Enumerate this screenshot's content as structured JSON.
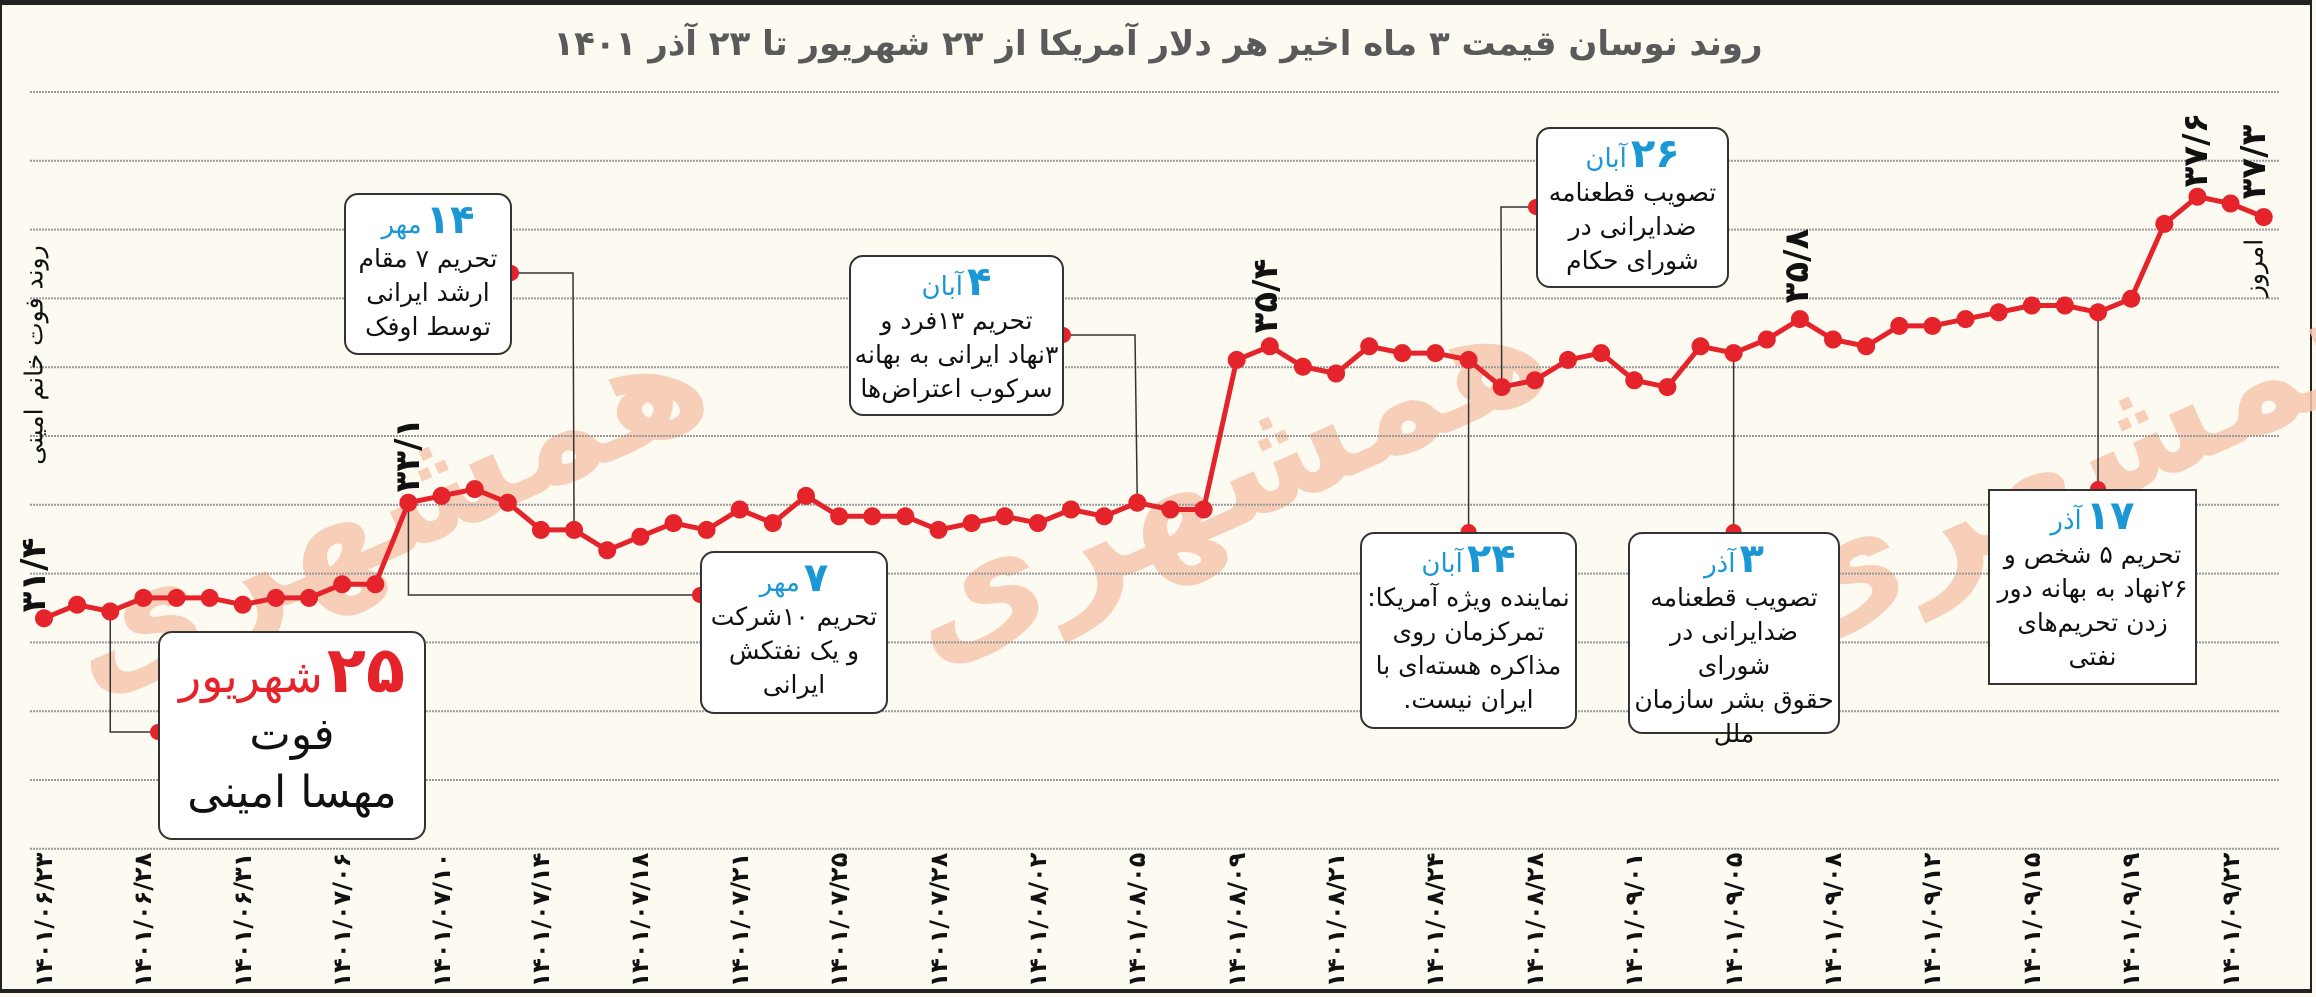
{
  "title": "روند نوسان قیمت ۳ ماه اخیر هر دلار آمریکا از ۲۳ شهریور تا ۲۳ آذر ۱۴۰۱",
  "side_label": "روند فوت خانم امینی",
  "watermark": "همشهری",
  "today_label": "امروز",
  "colors": {
    "line": "#e4232a",
    "accent_blue": "#1b97d5",
    "background": "#fdfaf2",
    "watermark": "#f7c8ae"
  },
  "value_labels": {
    "first": "۳۱/۴",
    "mehr": "۳۳/۱",
    "aban": "۳۵/۴",
    "azar": "۳۵/۸",
    "peak": "۳۷/۶",
    "today": "۳۷/۳"
  },
  "annotations": [
    {
      "day": "۲۵",
      "month": "شهریور",
      "lines": [
        "فوت",
        "مهسا امینی"
      ]
    },
    {
      "day": "۱۴",
      "month": "مهر",
      "lines": [
        "تحریم ۷ مقام",
        "ارشد ایرانی",
        "توسط اوفک"
      ]
    },
    {
      "day": "۷",
      "month": "مهر",
      "lines": [
        "تحریم ۱۰شرکت",
        "و یک نفتکش",
        "ایرانی"
      ]
    },
    {
      "day": "۴",
      "month": "آبان",
      "lines": [
        "تحریم ۱۳فرد و",
        "۳نهاد ایرانی به بهانه",
        "سرکوب اعتراض‌ها"
      ]
    },
    {
      "day": "۲۴",
      "month": "آبان",
      "lines": [
        "نماینده ویژه آمریکا:",
        "تمرکزمان روی",
        "مذاکره هسته‌ای با",
        "ایران نیست."
      ]
    },
    {
      "day": "۲۶",
      "month": "آبان",
      "lines": [
        "تصویب قطعنامه",
        "ضدایرانی در",
        "شورای حکام"
      ]
    },
    {
      "day": "۳",
      "month": "آذر",
      "lines": [
        "تصویب قطعنامه",
        "ضدایرانی در شورای",
        "حقوق بشر سازمان",
        "ملل"
      ]
    },
    {
      "day": "۱۷",
      "month": "آذر",
      "lines": [
        "تحریم ۵ شخص و",
        "۲۶نهاد به بهانه دور",
        "زدن تحریم‌های",
        "نفتی"
      ]
    }
  ],
  "chart_data": {
    "type": "line",
    "title": "روند نوسان قیمت ۳ ماه اخیر هر دلار آمریکا از ۲۳ شهریور تا ۲۳ آذر ۱۴۰۱",
    "xlabel": "",
    "ylabel": "",
    "grid": true,
    "x_tick_labels": [
      "۱۴۰۱/۰۶/۲۳",
      "۱۴۰۱/۰۶/۲۸",
      "۱۴۰۱/۰۶/۳۱",
      "۱۴۰۱/۰۷/۰۶",
      "۱۴۰۱/۰۷/۱۰",
      "۱۴۰۱/۰۷/۱۴",
      "۱۴۰۱/۰۷/۱۸",
      "۱۴۰۱/۰۷/۲۱",
      "۱۴۰۱/۰۷/۲۵",
      "۱۴۰۱/۰۷/۲۸",
      "۱۴۰۱/۰۸/۰۲",
      "۱۴۰۱/۰۸/۰۵",
      "۱۴۰۱/۰۸/۰۹",
      "۱۴۰۱/۰۸/۲۱",
      "۱۴۰۱/۰۸/۲۴",
      "۱۴۰۱/۰۸/۲۸",
      "۱۴۰۱/۰۹/۰۱",
      "۱۴۰۱/۰۹/۰۵",
      "۱۴۰۱/۰۹/۰۸",
      "۱۴۰۱/۰۹/۱۲",
      "۱۴۰۱/۰۹/۱۵",
      "۱۴۰۱/۰۹/۱۹",
      "۱۴۰۱/۰۹/۲۲"
    ],
    "ylim": [
      26.4,
      38.8
    ],
    "values": [
      31.4,
      31.6,
      31.5,
      31.7,
      31.7,
      31.7,
      31.6,
      31.7,
      31.7,
      31.9,
      31.9,
      33.1,
      33.2,
      33.3,
      33.1,
      32.7,
      32.7,
      32.4,
      32.6,
      32.8,
      32.7,
      33.0,
      32.8,
      33.2,
      32.9,
      32.9,
      32.9,
      32.7,
      32.8,
      32.9,
      32.8,
      33.0,
      32.9,
      33.1,
      33.0,
      33.0,
      35.2,
      35.4,
      35.1,
      35.0,
      35.4,
      35.3,
      35.3,
      35.2,
      34.8,
      34.9,
      35.2,
      35.3,
      34.9,
      34.8,
      35.4,
      35.3,
      35.5,
      35.8,
      35.5,
      35.4,
      35.7,
      35.7,
      35.8,
      35.9,
      36.0,
      36.0,
      35.9,
      36.1,
      37.2,
      37.6,
      37.5,
      37.3
    ]
  }
}
